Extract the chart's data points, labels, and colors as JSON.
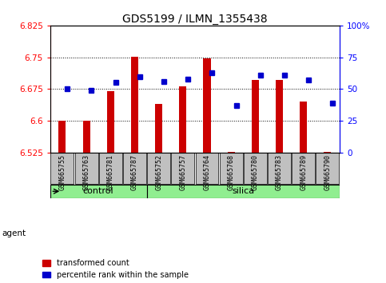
{
  "title": "GDS5199 / ILMN_1355438",
  "samples": [
    "GSM665755",
    "GSM665763",
    "GSM665781",
    "GSM665787",
    "GSM665752",
    "GSM665757",
    "GSM665764",
    "GSM665768",
    "GSM665780",
    "GSM665783",
    "GSM665789",
    "GSM665790"
  ],
  "groups": [
    "control",
    "control",
    "control",
    "control",
    "silica",
    "silica",
    "silica",
    "silica",
    "silica",
    "silica",
    "silica",
    "silica"
  ],
  "red_values": [
    6.601,
    6.601,
    6.67,
    6.751,
    6.64,
    6.682,
    6.748,
    6.527,
    6.697,
    6.697,
    6.645,
    6.527
  ],
  "blue_values": [
    50,
    49,
    55,
    60,
    56,
    58,
    63,
    37,
    61,
    61,
    57,
    39
  ],
  "y_min": 6.525,
  "y_max": 6.825,
  "y_ticks": [
    6.525,
    6.6,
    6.675,
    6.75,
    6.825
  ],
  "y2_ticks": [
    0,
    25,
    50,
    75,
    100
  ],
  "y2_labels": [
    "0",
    "25",
    "50",
    "75",
    "100%"
  ],
  "bar_color": "#CC0000",
  "dot_color": "#0000CC",
  "group_fill": "#90EE90",
  "sample_box_fill": "#C0C0C0",
  "legend_items": [
    "transformed count",
    "percentile rank within the sample"
  ],
  "grid_lines": [
    6.6,
    6.675,
    6.75
  ],
  "control_count": 4,
  "silica_count": 8,
  "bar_width": 0.3
}
